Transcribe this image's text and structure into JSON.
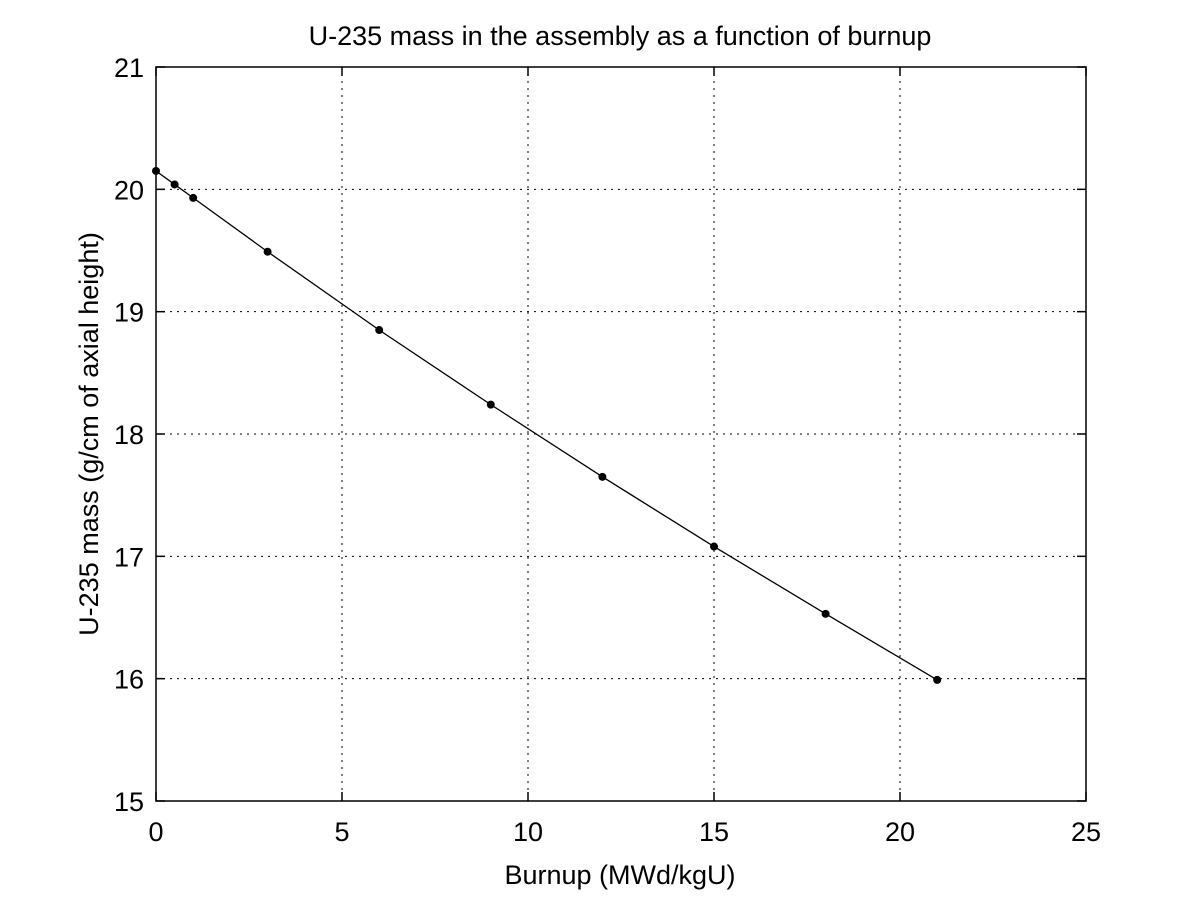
{
  "chart_data": {
    "type": "line",
    "title": "U-235 mass in the assembly as a function of burnup",
    "xlabel": "Burnup (MWd/kgU)",
    "ylabel": "U-235 mass (g/cm of axial height)",
    "xlim": [
      0,
      25
    ],
    "ylim": [
      15,
      21
    ],
    "xticks": [
      0,
      5,
      10,
      15,
      20,
      25
    ],
    "yticks": [
      15,
      16,
      17,
      18,
      19,
      20,
      21
    ],
    "grid": true,
    "series": [
      {
        "marker": "dot",
        "line_style": "solid",
        "color": "#000000",
        "x": [
          0,
          0.5,
          1,
          3,
          6,
          9,
          12,
          15,
          18,
          21
        ],
        "y": [
          20.15,
          20.04,
          19.93,
          19.49,
          18.85,
          18.24,
          17.65,
          17.08,
          16.53,
          15.99
        ]
      }
    ]
  }
}
